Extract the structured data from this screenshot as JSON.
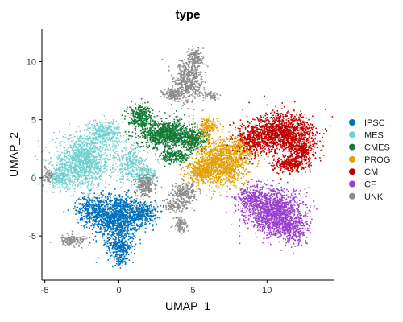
{
  "chart_data": {
    "type": "scatter",
    "title": "type",
    "xlabel": "UMAP_1",
    "ylabel": "UMAP_2",
    "xlim": [
      -5.2,
      14.5
    ],
    "ylim": [
      -8.8,
      12.8
    ],
    "xticks": [
      -5,
      0,
      5,
      10
    ],
    "yticks": [
      -5,
      0,
      5,
      10
    ],
    "grid": false,
    "legend_position": "right",
    "series": [
      {
        "name": "IPSC",
        "color": "#0072BD",
        "clusters": [
          [
            -0.2,
            -3.3,
            1.6,
            1.7,
            1200
          ],
          [
            0.0,
            -5.8,
            0.8,
            0.9,
            300
          ],
          [
            0.1,
            -7.0,
            0.35,
            0.6,
            60
          ],
          [
            -2.0,
            -2.6,
            0.9,
            1.0,
            250
          ],
          [
            1.7,
            -3.0,
            0.8,
            1.0,
            250
          ]
        ]
      },
      {
        "name": "MES",
        "color": "#70D0D0",
        "clusters": [
          [
            -2.5,
            1.4,
            1.8,
            2.0,
            1200
          ],
          [
            -1.0,
            3.9,
            1.0,
            1.1,
            300
          ],
          [
            -4.0,
            0.0,
            0.6,
            0.8,
            200
          ],
          [
            0.8,
            1.2,
            1.0,
            1.4,
            300
          ],
          [
            1.8,
            0.1,
            0.7,
            0.8,
            150
          ]
        ]
      },
      {
        "name": "CMES",
        "color": "#127A36",
        "clusters": [
          [
            3.2,
            3.8,
            1.6,
            1.1,
            1000
          ],
          [
            1.4,
            5.4,
            0.8,
            0.9,
            300
          ],
          [
            5.0,
            3.3,
            0.9,
            0.8,
            300
          ],
          [
            3.8,
            1.9,
            0.9,
            0.6,
            200
          ]
        ]
      },
      {
        "name": "PROG",
        "color": "#E69F00",
        "clusters": [
          [
            6.9,
            1.4,
            1.4,
            1.8,
            1100
          ],
          [
            5.5,
            0.6,
            0.9,
            1.0,
            300
          ],
          [
            8.3,
            2.4,
            0.7,
            1.3,
            200
          ],
          [
            6.0,
            4.4,
            0.6,
            0.7,
            150
          ]
        ]
      },
      {
        "name": "CM",
        "color": "#C00000",
        "clusters": [
          [
            11.0,
            3.9,
            1.9,
            1.5,
            1300
          ],
          [
            9.0,
            3.3,
            1.0,
            1.2,
            300
          ],
          [
            12.3,
            2.4,
            0.9,
            1.1,
            300
          ],
          [
            11.5,
            1.2,
            1.0,
            0.6,
            250
          ]
        ]
      },
      {
        "name": "CF",
        "color": "#9A3FD0",
        "clusters": [
          [
            10.5,
            -3.0,
            1.7,
            1.7,
            1300
          ],
          [
            9.0,
            -1.6,
            1.1,
            1.0,
            300
          ],
          [
            11.8,
            -4.4,
            0.9,
            1.0,
            250
          ]
        ]
      },
      {
        "name": "UNK",
        "color": "#8C8C8C",
        "clusters": [
          [
            4.6,
            8.3,
            0.9,
            1.7,
            500
          ],
          [
            5.1,
            10.3,
            0.5,
            0.8,
            150
          ],
          [
            3.6,
            7.2,
            0.6,
            0.5,
            150
          ],
          [
            1.8,
            -0.6,
            0.6,
            0.9,
            200
          ],
          [
            4.4,
            -1.3,
            0.8,
            1.0,
            250
          ],
          [
            4.1,
            -4.0,
            0.4,
            0.6,
            100
          ],
          [
            -3.2,
            -5.3,
            0.9,
            0.4,
            150
          ],
          [
            -4.8,
            0.2,
            0.3,
            0.6,
            60
          ],
          [
            6.2,
            7.1,
            0.5,
            0.3,
            60
          ],
          [
            3.7,
            -2.4,
            0.6,
            0.5,
            100
          ]
        ]
      }
    ]
  }
}
